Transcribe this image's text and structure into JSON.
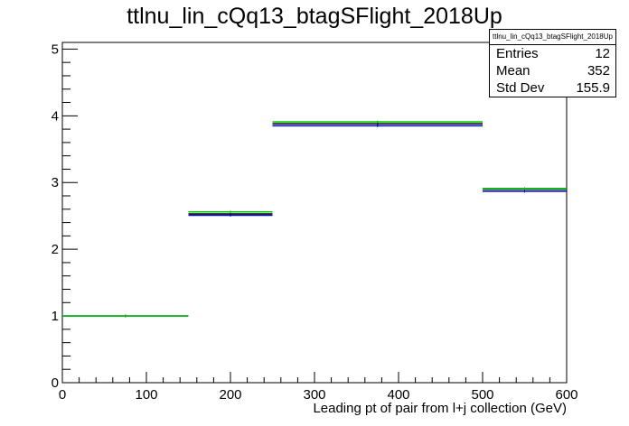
{
  "title": "ttlnu_lin_cQq13_btagSFlight_2018Up",
  "stats": {
    "name": "ttlnu_lin_cQq13_btagSFlight_2018Up",
    "rows": [
      {
        "label": "Entries",
        "value": "12"
      },
      {
        "label": "Mean",
        "value": "352"
      },
      {
        "label": "Std Dev",
        "value": "155.9"
      }
    ]
  },
  "colors": {
    "background": "#ffffff",
    "axis": "#000000",
    "series_black": "#000000",
    "series_blue": "#0000cc",
    "series_green": "#00cc00"
  },
  "chart_data": {
    "type": "histogram-step",
    "title": "ttlnu_lin_cQq13_btagSFlight_2018Up",
    "xlabel": "Leading pt of pair from l+j collection (GeV)",
    "ylabel": "",
    "xlim": [
      0,
      600
    ],
    "ylim": [
      0,
      5.1
    ],
    "x_ticks": [
      0,
      100,
      200,
      300,
      400,
      500,
      600
    ],
    "y_ticks": [
      0,
      1,
      2,
      3,
      4,
      5
    ],
    "bin_edges": [
      0,
      150,
      250,
      500,
      600
    ],
    "series": [
      {
        "color": "#000000",
        "values": [
          1.0,
          2.53,
          3.88,
          2.9
        ]
      },
      {
        "color": "#0000cc",
        "values": [
          1.0,
          2.51,
          3.85,
          2.87
        ]
      },
      {
        "color": "#00cc00",
        "values": [
          1.0,
          2.56,
          3.91,
          2.91
        ]
      }
    ],
    "grid": false,
    "legend": "top-right stats box"
  }
}
